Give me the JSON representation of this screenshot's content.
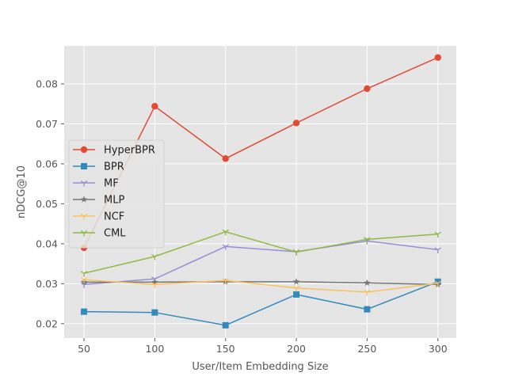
{
  "chart_data": {
    "type": "line",
    "title": "",
    "xlabel": "User/Item Embedding Size",
    "ylabel": "nDCG@10",
    "x": [
      50,
      100,
      150,
      200,
      250,
      300
    ],
    "x_ticks": [
      50,
      100,
      150,
      200,
      250,
      300
    ],
    "y_ticks": [
      0.02,
      0.03,
      0.04,
      0.05,
      0.06,
      0.07,
      0.08
    ],
    "xlim": [
      36,
      313
    ],
    "ylim": [
      0.0164,
      0.0895
    ],
    "grid": true,
    "legend_position": "center-left",
    "series": [
      {
        "name": "HyperBPR",
        "color": "#E24A33",
        "marker": "circle",
        "values": [
          0.039,
          0.0744,
          0.0613,
          0.0702,
          0.0788,
          0.0866
        ]
      },
      {
        "name": "BPR",
        "color": "#348ABD",
        "marker": "square",
        "values": [
          0.023,
          0.0228,
          0.0196,
          0.0273,
          0.0236,
          0.0305
        ]
      },
      {
        "name": "MF",
        "color": "#988ED5",
        "marker": "tri",
        "values": [
          0.0298,
          0.0312,
          0.0393,
          0.038,
          0.0407,
          0.0385
        ]
      },
      {
        "name": "MLP",
        "color": "#777777",
        "marker": "star",
        "values": [
          0.0304,
          0.0304,
          0.0305,
          0.0305,
          0.0302,
          0.0298
        ]
      },
      {
        "name": "NCF",
        "color": "#FBC15E",
        "marker": "tri",
        "values": [
          0.031,
          0.0298,
          0.0308,
          0.0289,
          0.0279,
          0.0301
        ]
      },
      {
        "name": "CML",
        "color": "#8EBA42",
        "marker": "tri",
        "values": [
          0.0326,
          0.0368,
          0.043,
          0.0379,
          0.0411,
          0.0424
        ]
      }
    ]
  }
}
